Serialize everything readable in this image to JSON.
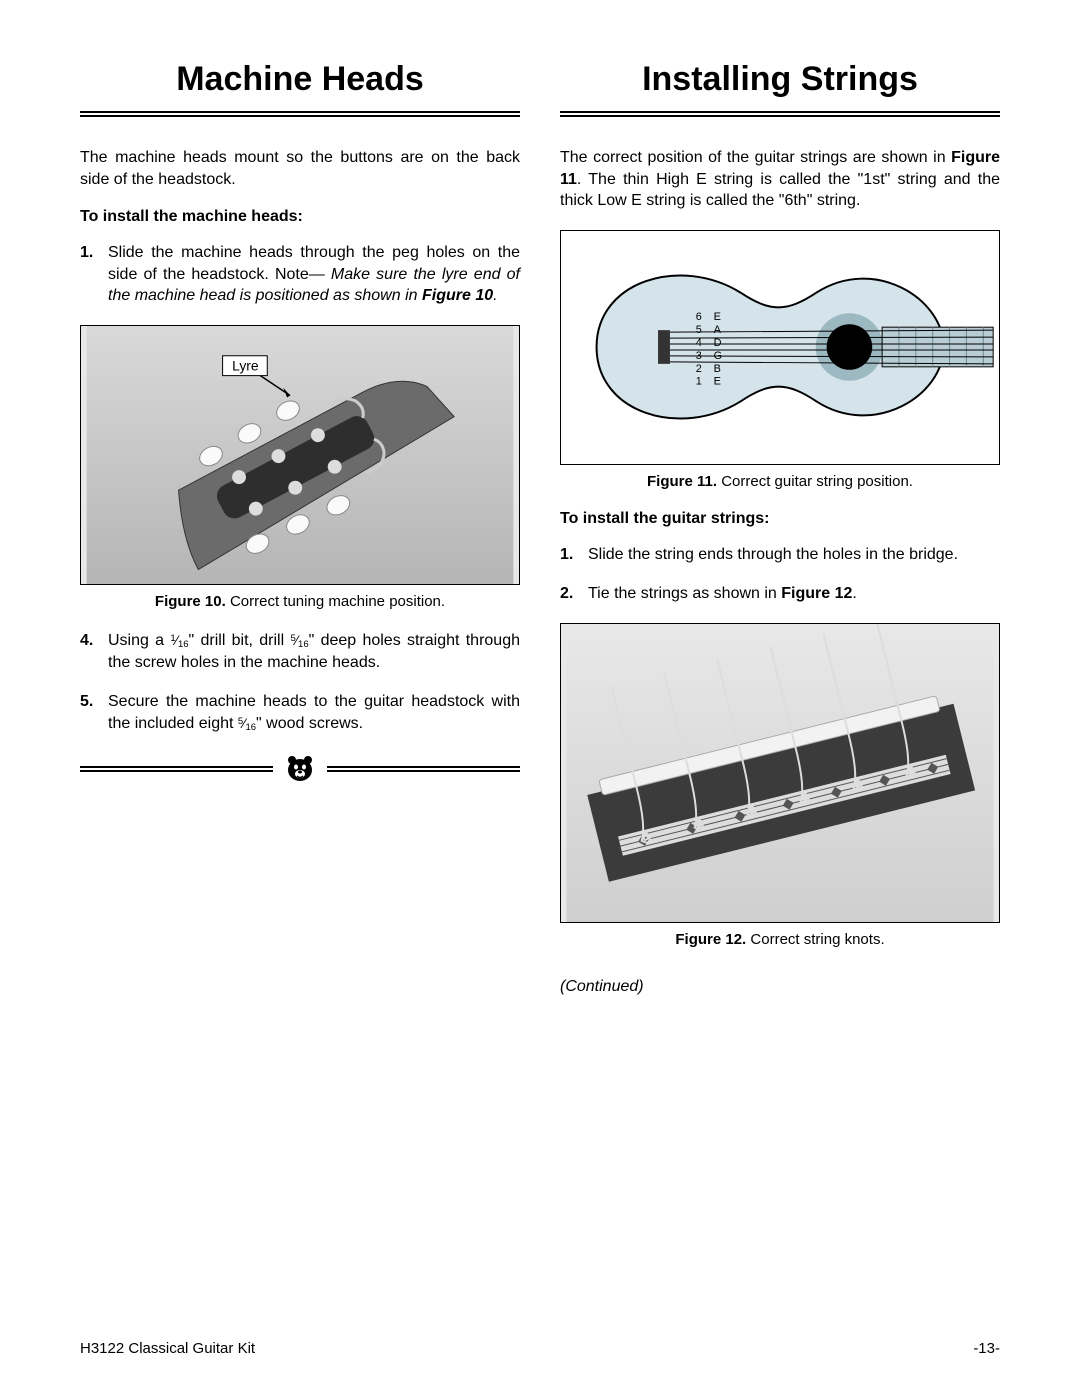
{
  "left": {
    "title": "Machine Heads",
    "intro": "The machine heads mount so the buttons are on the back side of the headstock.",
    "lead": "To install the machine heads:",
    "step1_num": "1.",
    "step1a": "Slide the machine heads through the peg holes on the side of the headstock. Note—",
    "step1b": "Make sure the lyre end of the machine head is positioned as shown in ",
    "step1c": "Figure 10",
    "step1d": ".",
    "lyre_label": "Lyre",
    "fig10_cap_b": "Figure 10.",
    "fig10_cap": " Correct tuning machine position.",
    "step4_num": "4.",
    "step4a": "Using a ",
    "step4_frac1_n": "1",
    "step4_frac1_d": "16",
    "step4b": "\" drill bit, drill ",
    "step4_frac2_n": "5",
    "step4_frac2_d": "16",
    "step4c": "\" deep holes straight through the screw holes in the machine heads.",
    "step5_num": "5.",
    "step5a": "Secure the machine heads to the guitar headstock with the included eight ",
    "step5_frac_n": "5",
    "step5_frac_d": "16",
    "step5b": "\" wood screws."
  },
  "right": {
    "title": "Installing Strings",
    "intro_a": "The correct position of the guitar strings are shown in ",
    "intro_b": "Figure 11",
    "intro_c": ". The thin High E string is called the \"1st\" string and the thick Low E string is called the \"6th\" string.",
    "strings": [
      {
        "n": "6",
        "note": "E"
      },
      {
        "n": "5",
        "note": "A"
      },
      {
        "n": "4",
        "note": "D"
      },
      {
        "n": "3",
        "note": "G"
      },
      {
        "n": "2",
        "note": "B"
      },
      {
        "n": "1",
        "note": "E"
      }
    ],
    "fig11_cap_b": "Figure 11.",
    "fig11_cap": " Correct guitar string position.",
    "lead": "To install the guitar strings:",
    "step1_num": "1.",
    "step1": "Slide the string ends through the holes in the bridge.",
    "step2_num": "2.",
    "step2a": "Tie the strings as shown in ",
    "step2b": "Figure 12",
    "step2c": ".",
    "fig12_cap_b": "Figure 12.",
    "fig12_cap": " Correct string knots.",
    "continued": "(Continued)"
  },
  "footer": {
    "left": "H3122 Classical Guitar Kit",
    "right": "-13-"
  },
  "colors": {
    "guitar_body": "#d4e4ea",
    "guitar_outline": "#000000",
    "rosette_outer": "#9cb8c0",
    "soundhole": "#000000",
    "fretwire": "#8da6ae"
  }
}
